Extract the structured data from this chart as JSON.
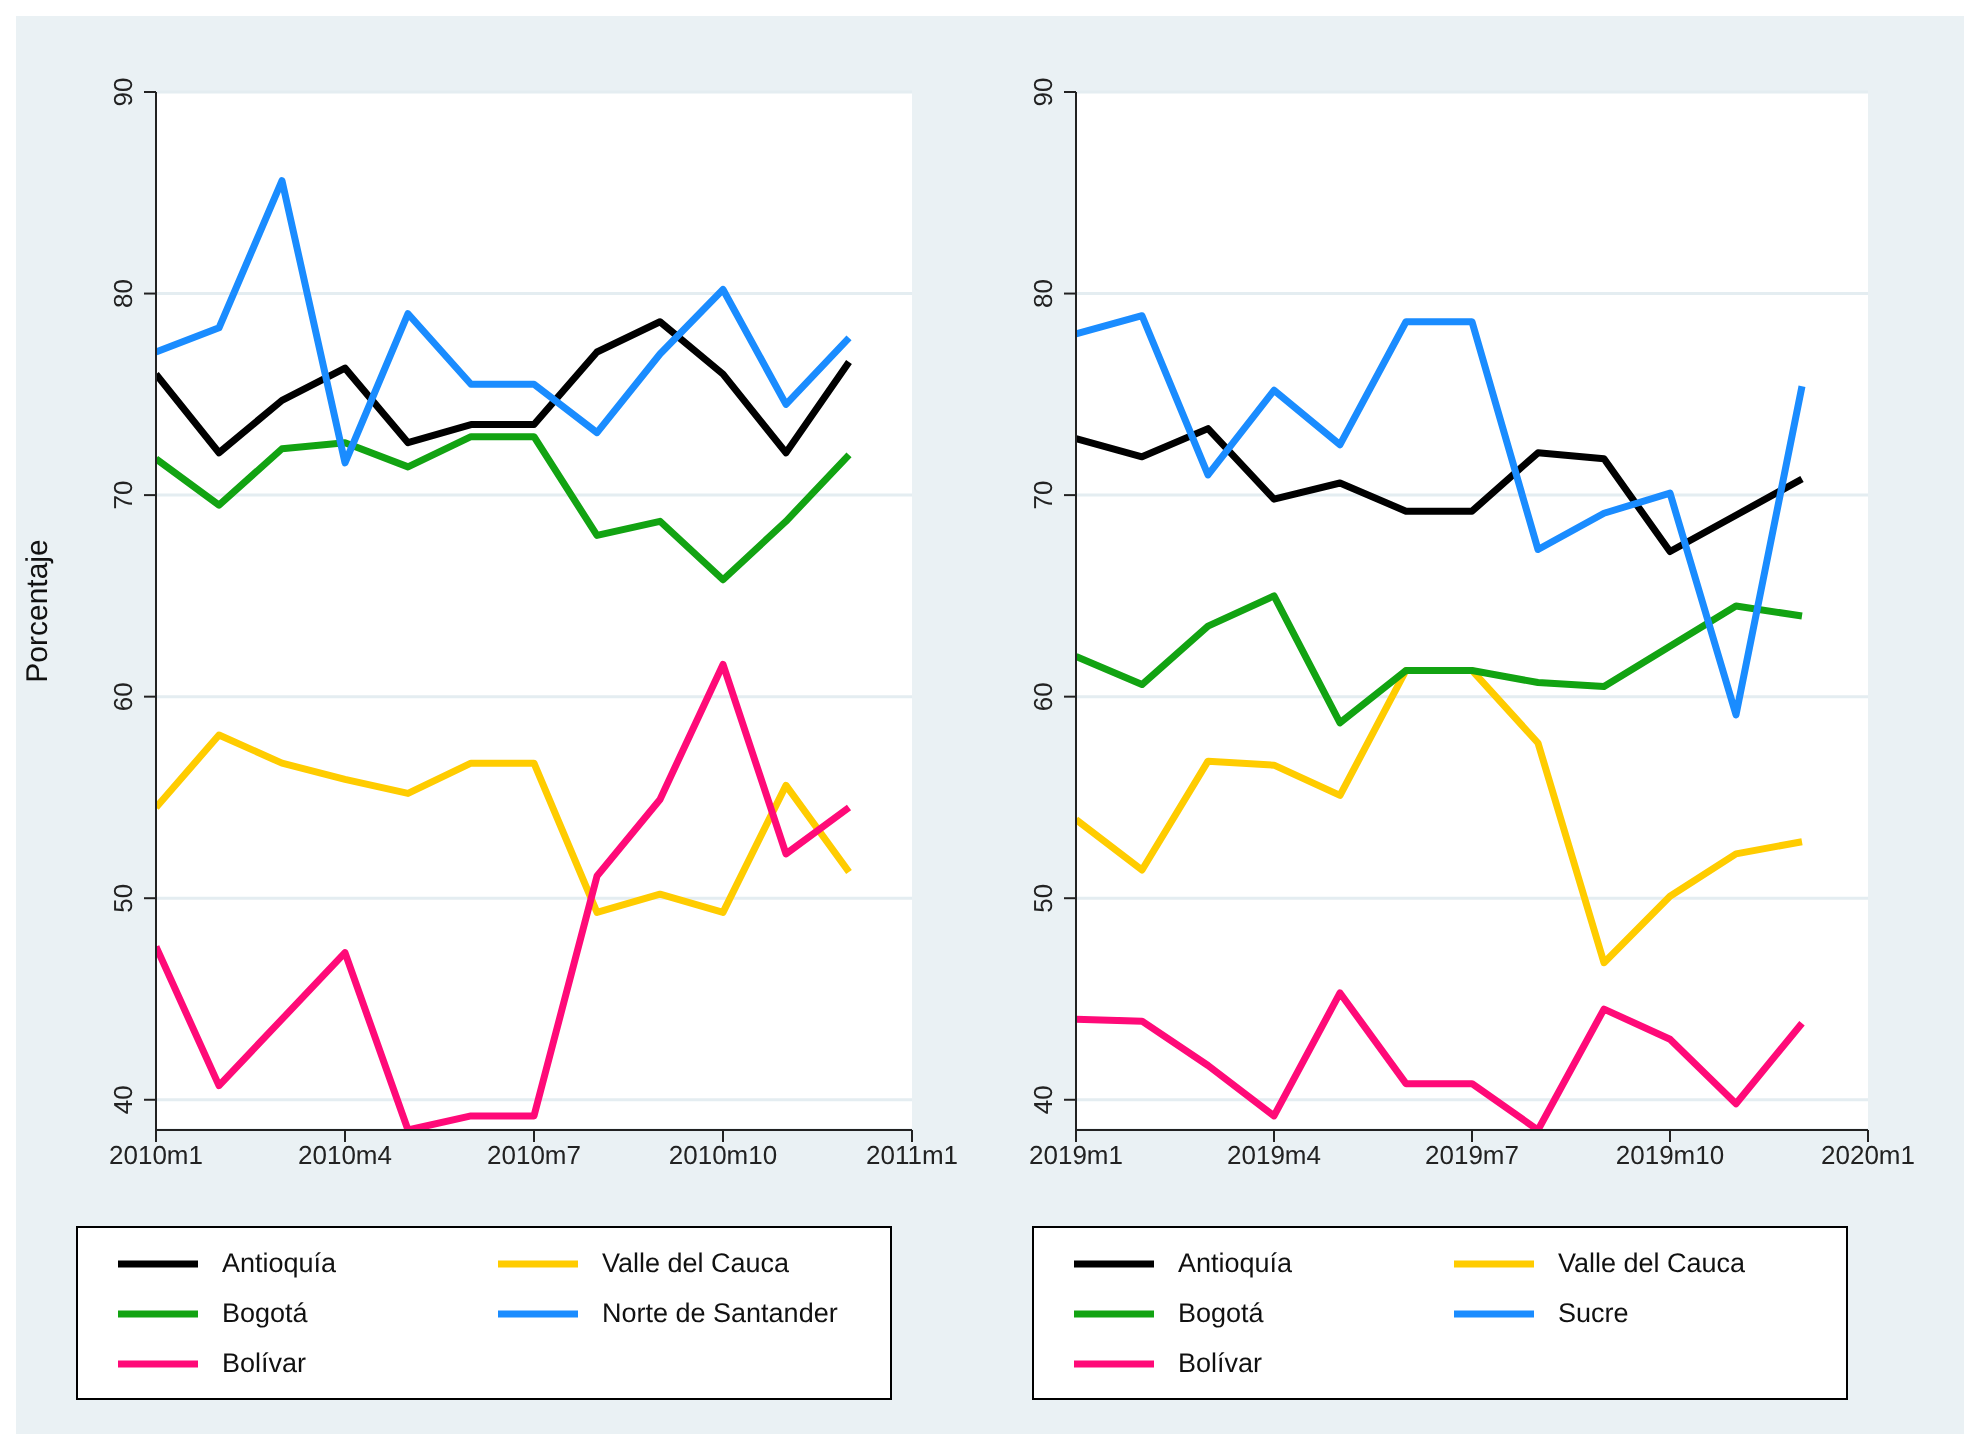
{
  "chart_data": [
    {
      "type": "line",
      "ylabel": "Porcentaje",
      "x": [
        "2010-01",
        "2010-02",
        "2010-03",
        "2010-04",
        "2010-05",
        "2010-06",
        "2010-07",
        "2010-08",
        "2010-09",
        "2010-10",
        "2010-11",
        "2010-12"
      ],
      "xlim": [
        "2010-01",
        "2011-01"
      ],
      "xticks": [
        {
          "value": "2010-01",
          "label": "2010m1"
        },
        {
          "value": "2010-04",
          "label": "2010m4"
        },
        {
          "value": "2010-07",
          "label": "2010m7"
        },
        {
          "value": "2010-10",
          "label": "2010m10"
        },
        {
          "value": "2011-01",
          "label": "2011m1"
        }
      ],
      "ylim": [
        38.5,
        90
      ],
      "yticks": [
        40,
        50,
        60,
        70,
        80,
        90
      ],
      "grid": "y",
      "legend": "bottom",
      "marker": "none",
      "line_style": "solid",
      "series": [
        {
          "name": "Antioquía",
          "color": "#000000",
          "values": [
            76.0,
            72.1,
            74.7,
            76.3,
            72.6,
            73.5,
            73.5,
            77.1,
            78.6,
            76.0,
            72.1,
            76.6
          ]
        },
        {
          "name": "Valle del Cauca",
          "color": "#ffcc00",
          "values": [
            54.5,
            58.1,
            56.7,
            55.9,
            55.2,
            56.7,
            56.7,
            49.3,
            50.2,
            49.3,
            55.6,
            51.3
          ]
        },
        {
          "name": "Bogotá",
          "color": "#12a312",
          "values": [
            71.8,
            69.5,
            72.3,
            72.6,
            71.4,
            72.9,
            72.9,
            68.0,
            68.7,
            65.8,
            68.7,
            72.0
          ]
        },
        {
          "name": "Norte de Santander",
          "color": "#1a8cff",
          "values": [
            77.1,
            78.3,
            85.6,
            71.6,
            79.0,
            75.5,
            75.5,
            73.1,
            77.0,
            80.2,
            74.5,
            77.8
          ]
        },
        {
          "name": "Bolívar",
          "color": "#ff0a78",
          "values": [
            47.6,
            40.7,
            44.0,
            47.3,
            38.5,
            39.2,
            39.2,
            51.1,
            54.9,
            61.6,
            52.2,
            54.5
          ]
        }
      ]
    },
    {
      "type": "line",
      "x": [
        "2019-01",
        "2019-02",
        "2019-03",
        "2019-04",
        "2019-05",
        "2019-06",
        "2019-07",
        "2019-08",
        "2019-09",
        "2019-10",
        "2019-11",
        "2019-12"
      ],
      "xlim": [
        "2019-01",
        "2020-01"
      ],
      "xticks": [
        {
          "value": "2019-01",
          "label": "2019m1"
        },
        {
          "value": "2019-04",
          "label": "2019m4"
        },
        {
          "value": "2019-07",
          "label": "2019m7"
        },
        {
          "value": "2019-10",
          "label": "2019m10"
        },
        {
          "value": "2020-01",
          "label": "2020m1"
        }
      ],
      "ylim": [
        38.5,
        90
      ],
      "yticks": [
        40,
        50,
        60,
        70,
        80,
        90
      ],
      "grid": "y",
      "legend": "bottom",
      "marker": "none",
      "line_style": "solid",
      "series": [
        {
          "name": "Antioquía",
          "color": "#000000",
          "values": [
            72.8,
            71.9,
            73.3,
            69.8,
            70.6,
            69.2,
            69.2,
            72.1,
            71.8,
            67.2,
            69.0,
            70.8
          ]
        },
        {
          "name": "Valle del Cauca",
          "color": "#ffcc00",
          "values": [
            53.9,
            51.4,
            56.8,
            56.6,
            55.1,
            61.3,
            61.3,
            57.7,
            46.8,
            50.1,
            52.2,
            52.8
          ]
        },
        {
          "name": "Bogotá",
          "color": "#12a312",
          "values": [
            62.0,
            60.6,
            63.5,
            65.0,
            58.7,
            61.3,
            61.3,
            60.7,
            60.5,
            62.5,
            64.5,
            64.0
          ]
        },
        {
          "name": "Sucre",
          "color": "#1a8cff",
          "values": [
            78.0,
            78.9,
            71.0,
            75.2,
            72.5,
            78.6,
            78.6,
            67.3,
            69.1,
            70.1,
            59.1,
            75.4
          ]
        },
        {
          "name": "Bolívar",
          "color": "#ff0a78",
          "values": [
            44.0,
            43.9,
            41.7,
            39.2,
            45.3,
            40.8,
            40.8,
            38.5,
            44.5,
            43.0,
            39.8,
            43.8
          ]
        }
      ]
    }
  ]
}
